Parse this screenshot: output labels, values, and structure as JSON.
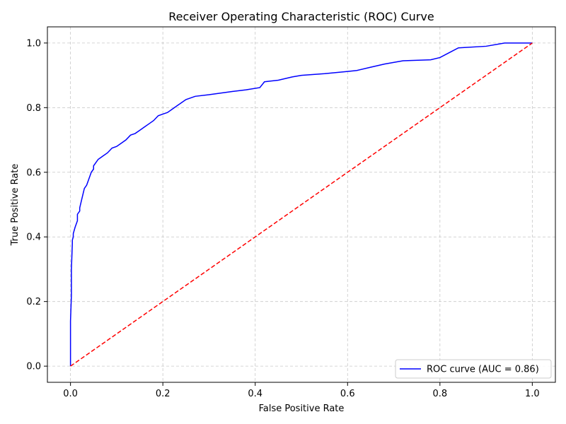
{
  "chart_data": {
    "type": "line",
    "title": "Receiver Operating Characteristic (ROC) Curve",
    "xlabel": "False Positive Rate",
    "ylabel": "True Positive Rate",
    "xlim": [
      -0.05,
      1.05
    ],
    "ylim": [
      -0.05,
      1.05
    ],
    "xticks": [
      0.0,
      0.2,
      0.4,
      0.6,
      0.8,
      1.0
    ],
    "yticks": [
      0.0,
      0.2,
      0.4,
      0.6,
      0.8,
      1.0
    ],
    "xtick_labels": [
      "0.0",
      "0.2",
      "0.4",
      "0.6",
      "0.8",
      "1.0"
    ],
    "ytick_labels": [
      "0.0",
      "0.2",
      "0.4",
      "0.6",
      "0.8",
      "1.0"
    ],
    "grid": true,
    "legend_position": "lower-right",
    "series": [
      {
        "name": "ROC curve (AUC = 0.86)",
        "color": "#0000ff",
        "style": "solid",
        "x": [
          0.0,
          0.0,
          0.002,
          0.002,
          0.004,
          0.004,
          0.006,
          0.006,
          0.01,
          0.015,
          0.015,
          0.02,
          0.02,
          0.025,
          0.03,
          0.03,
          0.035,
          0.04,
          0.045,
          0.05,
          0.05,
          0.055,
          0.06,
          0.065,
          0.07,
          0.08,
          0.09,
          0.1,
          0.11,
          0.12,
          0.13,
          0.14,
          0.15,
          0.16,
          0.17,
          0.18,
          0.19,
          0.2,
          0.21,
          0.22,
          0.23,
          0.25,
          0.27,
          0.3,
          0.35,
          0.38,
          0.41,
          0.42,
          0.45,
          0.48,
          0.5,
          0.55,
          0.6,
          0.62,
          0.65,
          0.68,
          0.72,
          0.78,
          0.8,
          0.82,
          0.84,
          0.9,
          0.94,
          1.0
        ],
        "y": [
          0.0,
          0.14,
          0.22,
          0.3,
          0.38,
          0.39,
          0.4,
          0.41,
          0.43,
          0.45,
          0.47,
          0.48,
          0.49,
          0.52,
          0.55,
          0.55,
          0.56,
          0.58,
          0.6,
          0.61,
          0.62,
          0.63,
          0.64,
          0.645,
          0.65,
          0.66,
          0.675,
          0.68,
          0.69,
          0.7,
          0.715,
          0.72,
          0.73,
          0.74,
          0.75,
          0.76,
          0.775,
          0.78,
          0.785,
          0.795,
          0.805,
          0.825,
          0.835,
          0.84,
          0.85,
          0.855,
          0.862,
          0.88,
          0.885,
          0.895,
          0.9,
          0.905,
          0.912,
          0.915,
          0.925,
          0.935,
          0.945,
          0.948,
          0.955,
          0.97,
          0.985,
          0.99,
          1.0,
          1.0
        ]
      },
      {
        "name": "",
        "color": "#ff0000",
        "style": "dashed",
        "x": [
          0.0,
          1.0
        ],
        "y": [
          0.0,
          1.0
        ]
      }
    ]
  }
}
